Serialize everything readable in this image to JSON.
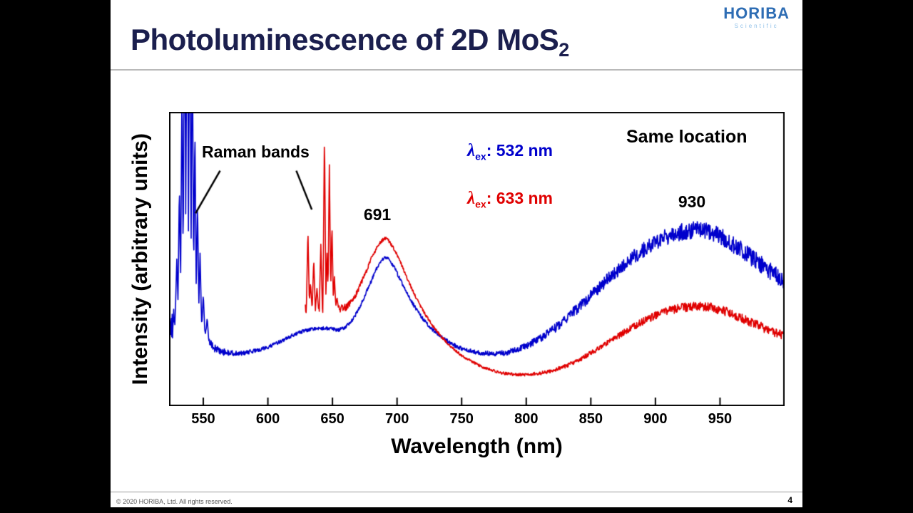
{
  "slide": {
    "title_prefix": "Photoluminescence of 2D MoS",
    "title_sub": "2",
    "title_color": "#1b1f4e",
    "footer": "© 2020 HORIBA, Ltd. All rights reserved.",
    "page_number": "4",
    "logo": {
      "main": "HORIBA",
      "sub": "Scientific",
      "main_color": "#2e6db4",
      "sub_color": "#8fc0e8"
    }
  },
  "chart_data": {
    "type": "line",
    "title": "",
    "xlabel": "Wavelength (nm)",
    "ylabel": "Intensity (arbitrary units)",
    "x_range": [
      523.5,
      1000
    ],
    "x_ticks": [
      550,
      600,
      650,
      700,
      750,
      800,
      850,
      900,
      950
    ],
    "ylim": [
      0,
      1
    ],
    "grid": false,
    "legend_position": "upper center",
    "legend": [
      {
        "lambda": "λ",
        "sub": "ex",
        "rest": ": 532 nm",
        "color": "#0000cc"
      },
      {
        "lambda": "λ",
        "sub": "ex",
        "rest": ": 633 nm",
        "color": "#e00000"
      }
    ],
    "annotations": {
      "raman_bands": "Raman bands",
      "same_location": "Same location",
      "peak_691": "691",
      "peak_930": "930",
      "pointer_lines": [
        {
          "x1": 563,
          "y1": 0.8,
          "x2": 544,
          "y2": 0.655
        },
        {
          "x1": 622,
          "y1": 0.8,
          "x2": 634,
          "y2": 0.668
        }
      ]
    },
    "series": [
      {
        "name": "λex: 532 nm",
        "color": "#0000cc",
        "x_start": 523.5,
        "points": [
          [
            525,
            0.26
          ],
          [
            528,
            0.3
          ],
          [
            531,
            0.32
          ],
          [
            534,
            0.33
          ],
          [
            537,
            0.34
          ],
          [
            540,
            0.33
          ],
          [
            543,
            0.32
          ],
          [
            546,
            0.3
          ],
          [
            549,
            0.27
          ],
          [
            552,
            0.24
          ],
          [
            556,
            0.21
          ],
          [
            560,
            0.195
          ],
          [
            566,
            0.183
          ],
          [
            572,
            0.18
          ],
          [
            580,
            0.18
          ],
          [
            590,
            0.188
          ],
          [
            600,
            0.2
          ],
          [
            610,
            0.22
          ],
          [
            620,
            0.243
          ],
          [
            628,
            0.256
          ],
          [
            635,
            0.263
          ],
          [
            642,
            0.265
          ],
          [
            648,
            0.263
          ],
          [
            654,
            0.258
          ],
          [
            660,
            0.268
          ],
          [
            666,
            0.295
          ],
          [
            672,
            0.345
          ],
          [
            678,
            0.405
          ],
          [
            684,
            0.465
          ],
          [
            688,
            0.495
          ],
          [
            691,
            0.505
          ],
          [
            694,
            0.498
          ],
          [
            698,
            0.47
          ],
          [
            703,
            0.425
          ],
          [
            708,
            0.38
          ],
          [
            714,
            0.335
          ],
          [
            720,
            0.297
          ],
          [
            727,
            0.262
          ],
          [
            734,
            0.235
          ],
          [
            742,
            0.212
          ],
          [
            750,
            0.196
          ],
          [
            758,
            0.186
          ],
          [
            766,
            0.18
          ],
          [
            774,
            0.178
          ],
          [
            782,
            0.18
          ],
          [
            790,
            0.188
          ],
          [
            800,
            0.205
          ],
          [
            810,
            0.228
          ],
          [
            820,
            0.257
          ],
          [
            830,
            0.293
          ],
          [
            840,
            0.333
          ],
          [
            850,
            0.375
          ],
          [
            860,
            0.418
          ],
          [
            870,
            0.458
          ],
          [
            880,
            0.497
          ],
          [
            890,
            0.53
          ],
          [
            900,
            0.557
          ],
          [
            910,
            0.578
          ],
          [
            920,
            0.592
          ],
          [
            930,
            0.598
          ],
          [
            938,
            0.595
          ],
          [
            946,
            0.585
          ],
          [
            954,
            0.568
          ],
          [
            962,
            0.545
          ],
          [
            970,
            0.52
          ],
          [
            978,
            0.494
          ],
          [
            986,
            0.468
          ],
          [
            994,
            0.442
          ],
          [
            1000,
            0.422
          ]
        ],
        "noise_amp": [
          [
            525,
            0.045
          ],
          [
            540,
            0.035
          ],
          [
            552,
            0.025
          ],
          [
            560,
            0.014
          ],
          [
            575,
            0.008
          ],
          [
            600,
            0.006
          ],
          [
            650,
            0.006
          ],
          [
            691,
            0.006
          ],
          [
            720,
            0.006
          ],
          [
            750,
            0.007
          ],
          [
            780,
            0.009
          ],
          [
            810,
            0.013
          ],
          [
            840,
            0.018
          ],
          [
            870,
            0.023
          ],
          [
            900,
            0.027
          ],
          [
            930,
            0.03
          ],
          [
            960,
            0.03
          ],
          [
            1000,
            0.029
          ]
        ],
        "spikes": [
          [
            529.5,
            0.5
          ],
          [
            531.5,
            0.75
          ],
          [
            533.5,
            1.1
          ],
          [
            535.5,
            1.6
          ],
          [
            537.5,
            1.9
          ],
          [
            539.5,
            1.7
          ],
          [
            541.5,
            1.3
          ],
          [
            543.5,
            0.95
          ],
          [
            545.5,
            0.7
          ],
          [
            547.5,
            0.52
          ],
          [
            550,
            0.38
          ],
          [
            553,
            0.3
          ]
        ]
      },
      {
        "name": "λex: 633 nm",
        "color": "#e00000",
        "x_start": 629,
        "points": [
          [
            629,
            0.33
          ],
          [
            636,
            0.331
          ],
          [
            640,
            0.332
          ],
          [
            645,
            0.33
          ],
          [
            650,
            0.328
          ],
          [
            655,
            0.33
          ],
          [
            660,
            0.335
          ],
          [
            665,
            0.355
          ],
          [
            670,
            0.395
          ],
          [
            675,
            0.445
          ],
          [
            680,
            0.5
          ],
          [
            685,
            0.545
          ],
          [
            689,
            0.565
          ],
          [
            691,
            0.57
          ],
          [
            694,
            0.56
          ],
          [
            698,
            0.532
          ],
          [
            703,
            0.485
          ],
          [
            708,
            0.432
          ],
          [
            714,
            0.375
          ],
          [
            720,
            0.325
          ],
          [
            727,
            0.276
          ],
          [
            734,
            0.237
          ],
          [
            742,
            0.201
          ],
          [
            750,
            0.172
          ],
          [
            758,
            0.151
          ],
          [
            766,
            0.133
          ],
          [
            774,
            0.121
          ],
          [
            782,
            0.112
          ],
          [
            790,
            0.108
          ],
          [
            800,
            0.107
          ],
          [
            810,
            0.111
          ],
          [
            820,
            0.12
          ],
          [
            830,
            0.135
          ],
          [
            840,
            0.155
          ],
          [
            850,
            0.18
          ],
          [
            860,
            0.207
          ],
          [
            870,
            0.235
          ],
          [
            880,
            0.262
          ],
          [
            890,
            0.287
          ],
          [
            900,
            0.308
          ],
          [
            910,
            0.325
          ],
          [
            920,
            0.334
          ],
          [
            930,
            0.339
          ],
          [
            938,
            0.338
          ],
          [
            946,
            0.332
          ],
          [
            954,
            0.322
          ],
          [
            962,
            0.308
          ],
          [
            970,
            0.293
          ],
          [
            978,
            0.277
          ],
          [
            986,
            0.262
          ],
          [
            994,
            0.248
          ],
          [
            1000,
            0.24
          ]
        ],
        "noise_amp": [
          [
            629,
            0.02
          ],
          [
            650,
            0.018
          ],
          [
            665,
            0.01
          ],
          [
            680,
            0.007
          ],
          [
            700,
            0.005
          ],
          [
            750,
            0.004
          ],
          [
            800,
            0.005
          ],
          [
            850,
            0.008
          ],
          [
            880,
            0.011
          ],
          [
            910,
            0.014
          ],
          [
            940,
            0.016
          ],
          [
            970,
            0.016
          ],
          [
            1000,
            0.015
          ]
        ],
        "spikes": [
          [
            631,
            0.6
          ],
          [
            633,
            0.42
          ],
          [
            635.5,
            0.5
          ],
          [
            638,
            0.4
          ],
          [
            641,
            0.55
          ],
          [
            643.8,
            0.93
          ],
          [
            645.8,
            0.52
          ],
          [
            647.6,
            0.82
          ],
          [
            649.6,
            0.62
          ],
          [
            651.5,
            0.44
          ],
          [
            653.5,
            0.37
          ]
        ]
      }
    ]
  }
}
